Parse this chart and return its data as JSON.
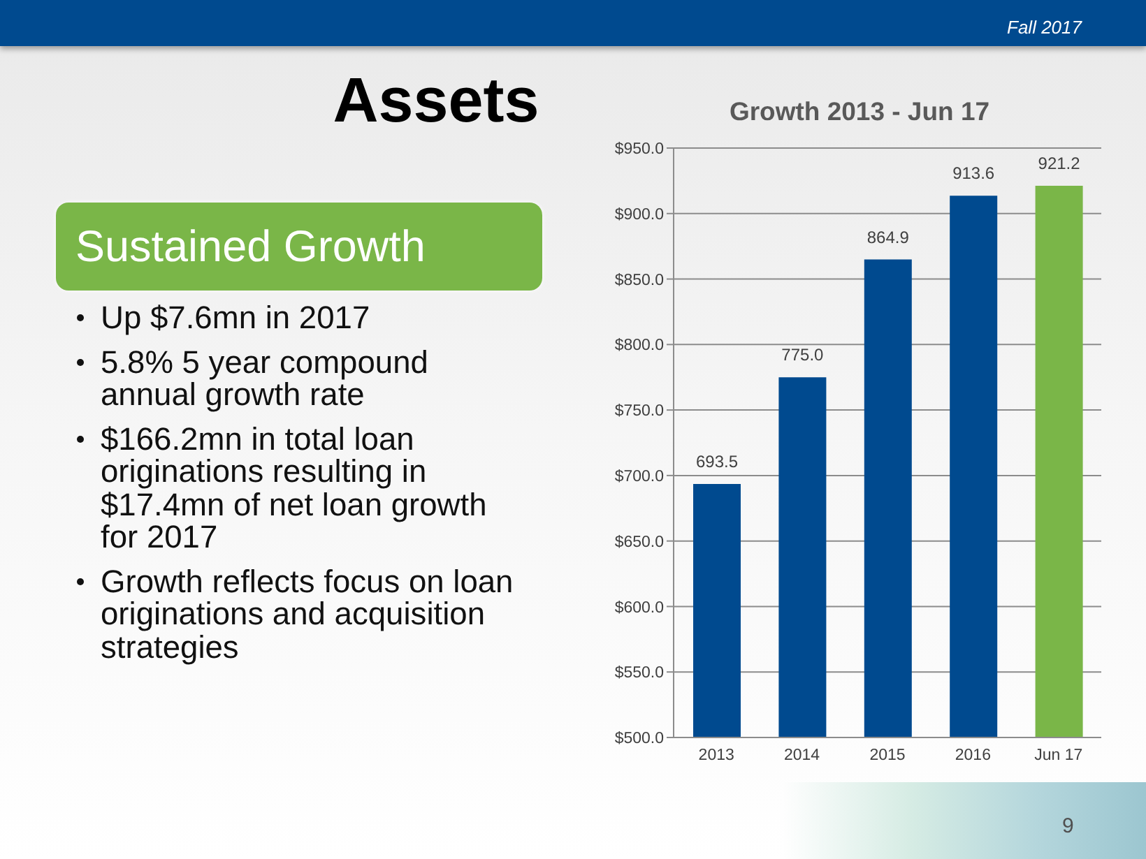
{
  "chart_data": {
    "type": "bar",
    "title": "Assets",
    "subtitle": "Growth 2013 - Jun 17",
    "categories": [
      "2013",
      "2014",
      "2015",
      "2016",
      "Jun 17"
    ],
    "values": [
      693.5,
      775.0,
      864.9,
      913.6,
      921.2
    ],
    "colors": [
      "#004a8f",
      "#004a8f",
      "#004a8f",
      "#004a8f",
      "#7ab648"
    ],
    "value_labels": [
      "693.5",
      "775.0",
      "864.9",
      "913.6",
      "921.2"
    ],
    "ylim": [
      500,
      950
    ],
    "yticks": [
      {
        "value": 500,
        "label": "$500.0"
      },
      {
        "value": 550,
        "label": "$550.0"
      },
      {
        "value": 600,
        "label": "$600.0"
      },
      {
        "value": 650,
        "label": "$650.0"
      },
      {
        "value": 700,
        "label": "$700.0"
      },
      {
        "value": 750,
        "label": "$750.0"
      },
      {
        "value": 800,
        "label": "$800.0"
      },
      {
        "value": 850,
        "label": "$850.0"
      },
      {
        "value": 900,
        "label": "$900.0"
      },
      {
        "value": 950,
        "label": "$950.0"
      }
    ],
    "grid": "y",
    "annotations": [
      "Fall 2017",
      "Sustained Growth",
      "Up $7.6mn in 2017",
      "5.8% 5 year compound annual growth rate",
      "$166.2mn in total loan originations resulting in $17.4mn of net loan growth for 2017",
      "Growth reflects focus on loan originations and acquisition strategies",
      "9"
    ]
  }
}
